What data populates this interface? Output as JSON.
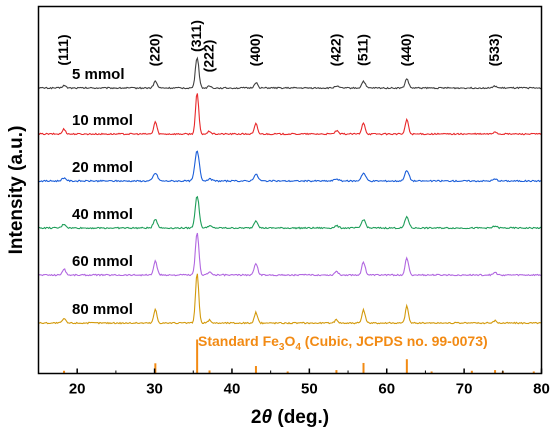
{
  "chart_data": {
    "type": "line",
    "title": "",
    "xlabel_prefix": "2",
    "xlabel_theta": "θ",
    "xlabel_suffix": " (deg.)",
    "ylabel": "Intensity (a.u.)",
    "xlim": [
      15,
      80
    ],
    "x_ticks": [
      20,
      30,
      40,
      50,
      60,
      70,
      80
    ],
    "y_ticks_shown": false,
    "grid": false,
    "peak_labels": [
      {
        "label": "(111)",
        "x": 18.3
      },
      {
        "label": "(220)",
        "x": 30.1
      },
      {
        "label": "(311)",
        "x": 35.5
      },
      {
        "label": "(222)",
        "x": 37.1
      },
      {
        "label": "(400)",
        "x": 43.1
      },
      {
        "label": "(422)",
        "x": 53.5
      },
      {
        "label": "(511)",
        "x": 57.0
      },
      {
        "label": "(440)",
        "x": 62.6
      },
      {
        "label": "(533)",
        "x": 74.0
      }
    ],
    "series": [
      {
        "name": "5 mmol",
        "color": "#404040",
        "peaks": [
          [
            18.3,
            0.08
          ],
          [
            30.1,
            0.22
          ],
          [
            35.5,
            1.0
          ],
          [
            37.1,
            0.06
          ],
          [
            43.1,
            0.18
          ],
          [
            53.5,
            0.07
          ],
          [
            57.0,
            0.22
          ],
          [
            62.6,
            0.3
          ],
          [
            74.0,
            0.06
          ]
        ]
      },
      {
        "name": "10 mmol",
        "color": "#e8292b",
        "peaks": [
          [
            18.3,
            0.12
          ],
          [
            30.1,
            0.3
          ],
          [
            35.5,
            1.0
          ],
          [
            37.1,
            0.07
          ],
          [
            43.1,
            0.25
          ],
          [
            53.5,
            0.08
          ],
          [
            57.0,
            0.28
          ],
          [
            62.6,
            0.36
          ],
          [
            74.0,
            0.06
          ]
        ]
      },
      {
        "name": "20 mmol",
        "color": "#1c5fd9",
        "peaks": [
          [
            18.3,
            0.1
          ],
          [
            30.1,
            0.26
          ],
          [
            35.5,
            1.0
          ],
          [
            37.1,
            0.07
          ],
          [
            43.1,
            0.22
          ],
          [
            53.5,
            0.07
          ],
          [
            57.0,
            0.26
          ],
          [
            62.6,
            0.34
          ],
          [
            74.0,
            0.06
          ]
        ]
      },
      {
        "name": "40 mmol",
        "color": "#1f9e5a",
        "peaks": [
          [
            18.3,
            0.12
          ],
          [
            30.1,
            0.28
          ],
          [
            35.5,
            1.0
          ],
          [
            37.1,
            0.07
          ],
          [
            43.1,
            0.23
          ],
          [
            53.5,
            0.07
          ],
          [
            57.0,
            0.27
          ],
          [
            62.6,
            0.35
          ],
          [
            74.0,
            0.06
          ]
        ]
      },
      {
        "name": "60 mmol",
        "color": "#b167e0",
        "peaks": [
          [
            18.3,
            0.14
          ],
          [
            30.1,
            0.33
          ],
          [
            35.5,
            1.0
          ],
          [
            37.1,
            0.08
          ],
          [
            43.1,
            0.28
          ],
          [
            53.5,
            0.09
          ],
          [
            57.0,
            0.31
          ],
          [
            62.6,
            0.4
          ],
          [
            74.0,
            0.06
          ]
        ]
      },
      {
        "name": "80 mmol",
        "color": "#d39a0d",
        "peaks": [
          [
            18.3,
            0.09
          ],
          [
            30.1,
            0.27
          ],
          [
            35.5,
            1.0
          ],
          [
            37.1,
            0.06
          ],
          [
            43.1,
            0.21
          ],
          [
            53.5,
            0.07
          ],
          [
            57.0,
            0.26
          ],
          [
            62.6,
            0.34
          ],
          [
            74.0,
            0.05
          ]
        ]
      }
    ],
    "reference": {
      "label_text": "Standard Fe",
      "label_sub": "3",
      "label_mid": "O",
      "label_sub2": "4",
      "label_rest": " (Cubic, JCPDS no. 99-0073)",
      "color": "#f28a13",
      "lines": [
        [
          18.3,
          0.08
        ],
        [
          30.1,
          0.3
        ],
        [
          35.5,
          1.0
        ],
        [
          37.1,
          0.09
        ],
        [
          43.1,
          0.22
        ],
        [
          47.2,
          0.06
        ],
        [
          53.5,
          0.1
        ],
        [
          57.0,
          0.31
        ],
        [
          62.6,
          0.42
        ],
        [
          65.8,
          0.06
        ],
        [
          71.0,
          0.08
        ],
        [
          74.0,
          0.1
        ],
        [
          75.0,
          0.07
        ],
        [
          79.0,
          0.06
        ]
      ]
    }
  }
}
